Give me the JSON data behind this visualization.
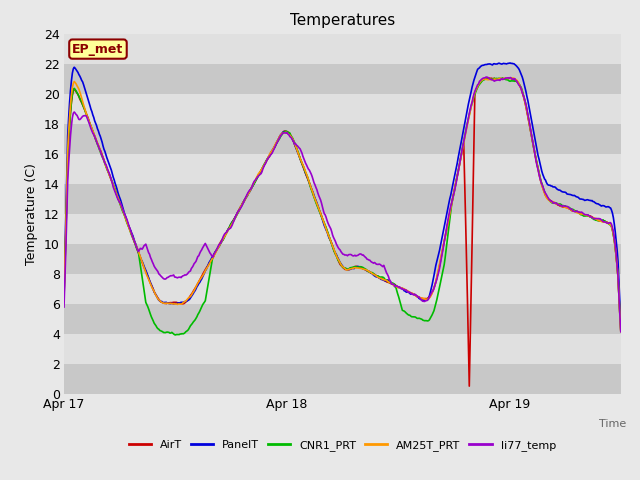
{
  "title": "Temperatures",
  "ylabel": "Temperature (C)",
  "xlabel": "Time",
  "ylim": [
    0,
    24
  ],
  "yticks": [
    0,
    2,
    4,
    6,
    8,
    10,
    12,
    14,
    16,
    18,
    20,
    22,
    24
  ],
  "xtick_labels": [
    "Apr 17",
    "Apr 18",
    "Apr 19"
  ],
  "xtick_positions": [
    0,
    1,
    2
  ],
  "xlim": [
    0,
    2.5
  ],
  "fig_facecolor": "#e8e8e8",
  "ax_facecolor": "#d0d0d0",
  "band_light": "#e0e0e0",
  "band_dark": "#c8c8c8",
  "label_box_text": "EP_met",
  "label_box_facecolor": "#ffff99",
  "label_box_edgecolor": "#8b0000",
  "label_box_textcolor": "#8b0000",
  "series_order": [
    "AirT",
    "PanelT",
    "CNR1_PRT",
    "AM25T_PRT",
    "li77_temp"
  ],
  "series": {
    "AirT": {
      "color": "#cc0000",
      "lw": 1.2
    },
    "PanelT": {
      "color": "#0000dd",
      "lw": 1.2
    },
    "CNR1_PRT": {
      "color": "#00bb00",
      "lw": 1.2
    },
    "AM25T_PRT": {
      "color": "#ff9900",
      "lw": 1.2
    },
    "li77_temp": {
      "color": "#9900cc",
      "lw": 1.2
    }
  }
}
